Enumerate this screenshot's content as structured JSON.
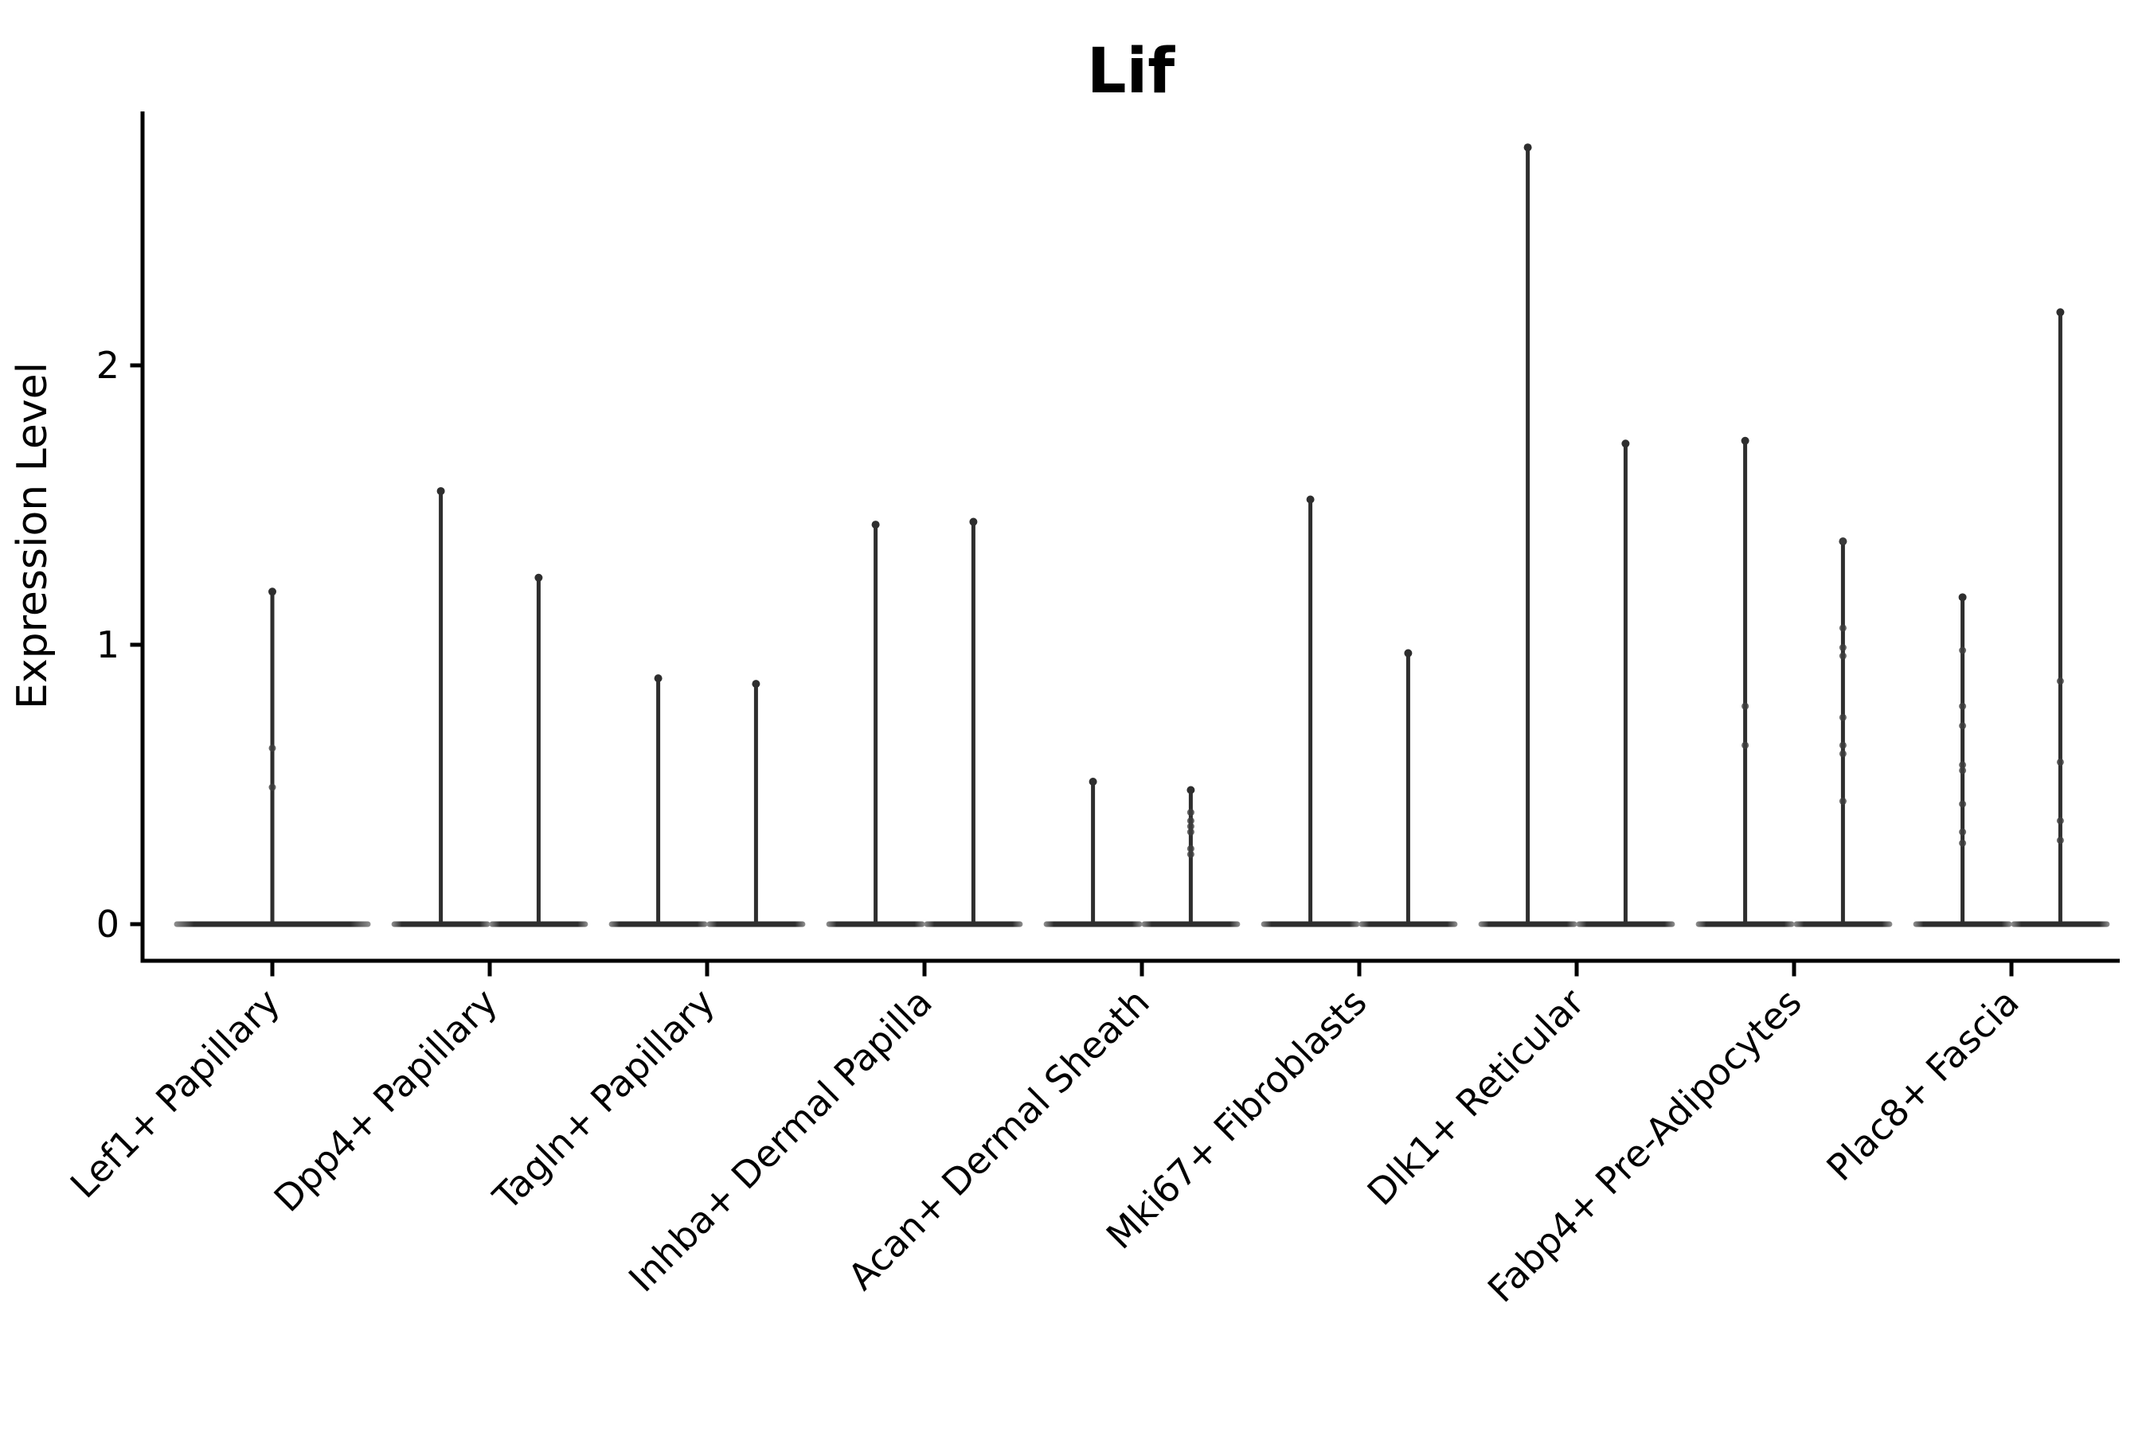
{
  "chart_data": {
    "type": "violin",
    "title": "Lif",
    "xlabel": "",
    "ylabel": "Expression Level",
    "grid": false,
    "legend": "none",
    "ylim": [
      -0.13,
      2.9
    ],
    "yticks": [
      {
        "value": 0,
        "label": "0"
      },
      {
        "value": 1,
        "label": "1"
      },
      {
        "value": 2,
        "label": "2"
      }
    ],
    "line_color": "#2e2e2e",
    "axis_color": "#000000",
    "categories": [
      {
        "label": "Lef1+ Papillary",
        "violins": [
          {
            "max": 1.19,
            "points": [
              0.63,
              0.49
            ]
          }
        ]
      },
      {
        "label": "Dpp4+ Papillary",
        "violins": [
          {
            "max": 1.55,
            "points": []
          },
          {
            "max": 1.24,
            "points": []
          }
        ]
      },
      {
        "label": "Tagln+ Papillary",
        "violins": [
          {
            "max": 0.88,
            "points": []
          },
          {
            "max": 0.86,
            "points": []
          }
        ]
      },
      {
        "label": "Inhba+ Dermal Papilla",
        "violins": [
          {
            "max": 1.43,
            "points": []
          },
          {
            "max": 1.44,
            "points": []
          }
        ]
      },
      {
        "label": "Acan+ Dermal Sheath",
        "violins": [
          {
            "max": 0.51,
            "points": []
          },
          {
            "max": 0.48,
            "points": [
              0.4,
              0.37,
              0.35,
              0.33,
              0.27,
              0.25
            ]
          }
        ]
      },
      {
        "label": "Mki67+ Fibroblasts",
        "violins": [
          {
            "max": 1.52,
            "points": []
          },
          {
            "max": 0.97,
            "points": []
          }
        ]
      },
      {
        "label": "Dlk1+ Reticular",
        "violins": [
          {
            "max": 2.78,
            "points": []
          },
          {
            "max": 1.72,
            "points": []
          }
        ]
      },
      {
        "label": "Fabp4+ Pre-Adipocytes",
        "violins": [
          {
            "max": 1.73,
            "points": [
              0.78,
              0.64
            ]
          },
          {
            "max": 1.37,
            "points": [
              1.37,
              1.06,
              0.99,
              0.96,
              0.74,
              0.64,
              0.61,
              0.44
            ]
          }
        ]
      },
      {
        "label": "Plac8+ Fascia",
        "violins": [
          {
            "max": 1.17,
            "points": [
              0.98,
              0.78,
              0.71,
              0.57,
              0.55,
              0.43,
              0.33,
              0.29
            ]
          },
          {
            "max": 2.19,
            "points": [
              0.87,
              0.58,
              0.37,
              0.3
            ]
          }
        ]
      }
    ]
  }
}
